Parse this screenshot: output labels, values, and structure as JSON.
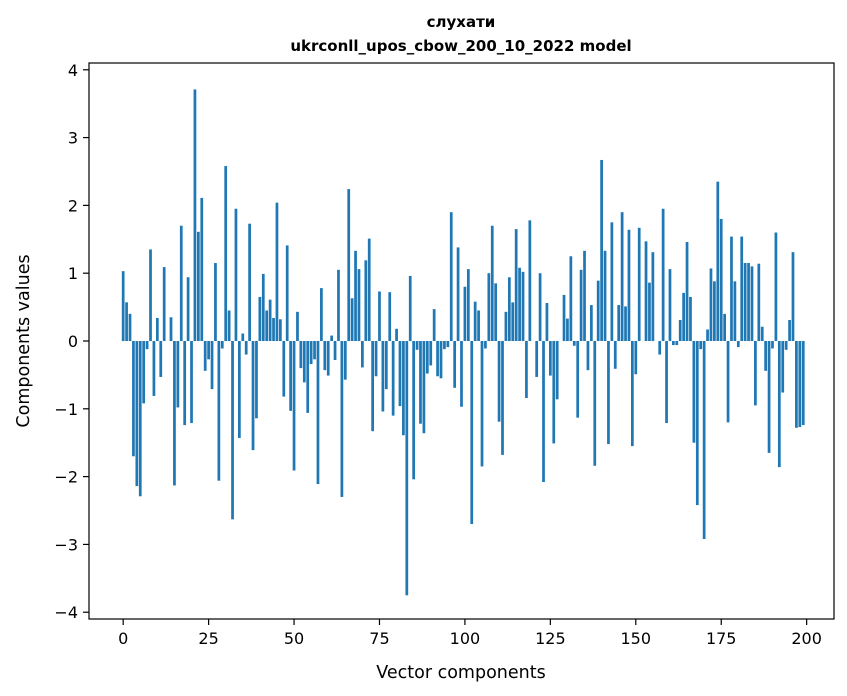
{
  "chart_data": {
    "type": "bar",
    "title_line1": "слухати",
    "title_line2": "ukrconll_upos_cbow_200_10_2022 model",
    "xlabel": "Vector components",
    "ylabel": "Components values",
    "xlim": [
      -10,
      208
    ],
    "ylim": [
      -4.1,
      4.1
    ],
    "xticks": [
      0,
      25,
      50,
      75,
      100,
      125,
      150,
      175,
      200
    ],
    "xtick_labels": [
      "0",
      "25",
      "50",
      "75",
      "100",
      "125",
      "150",
      "175",
      "200"
    ],
    "yticks": [
      -4,
      -3,
      -2,
      -1,
      0,
      1,
      2,
      3,
      4
    ],
    "ytick_labels": [
      "−4",
      "−3",
      "−2",
      "−1",
      "0",
      "1",
      "2",
      "3",
      "4"
    ],
    "bar_color": "#1f77b4",
    "values": [
      1.03,
      0.57,
      0.4,
      -1.7,
      -2.14,
      -2.29,
      -0.92,
      -0.12,
      1.35,
      -0.81,
      0.34,
      -0.53,
      1.09,
      0.0,
      0.35,
      -2.13,
      -0.98,
      1.7,
      -1.24,
      0.94,
      -1.21,
      3.71,
      1.61,
      2.11,
      -0.44,
      -0.27,
      -0.71,
      1.15,
      -2.06,
      -0.11,
      2.58,
      0.45,
      -2.63,
      1.95,
      -1.43,
      0.11,
      -0.2,
      1.73,
      -1.61,
      -1.14,
      0.65,
      0.99,
      0.45,
      0.61,
      0.34,
      2.04,
      0.32,
      -0.82,
      1.41,
      -1.03,
      -1.91,
      0.43,
      -0.4,
      -0.61,
      -1.06,
      -0.34,
      -0.27,
      -2.11,
      0.78,
      -0.43,
      -0.51,
      0.08,
      -0.28,
      1.05,
      -2.3,
      -0.57,
      2.24,
      0.63,
      1.33,
      1.06,
      -0.39,
      1.19,
      1.51,
      -1.33,
      -0.52,
      0.73,
      -1.04,
      -0.71,
      0.72,
      -1.1,
      0.18,
      -0.96,
      -1.39,
      -3.75,
      0.96,
      -2.04,
      -0.13,
      -1.22,
      -1.36,
      -0.48,
      -0.36,
      0.47,
      -0.52,
      -0.55,
      -0.12,
      -0.09,
      1.9,
      -0.69,
      1.38,
      -0.97,
      0.8,
      1.06,
      -2.7,
      0.58,
      0.45,
      -1.85,
      -0.11,
      1.0,
      1.7,
      0.85,
      -1.19,
      -1.68,
      0.43,
      0.94,
      0.57,
      1.65,
      1.08,
      1.02,
      -0.84,
      1.78,
      0.0,
      -0.53,
      1.0,
      -2.08,
      0.56,
      -0.51,
      -1.51,
      -0.86,
      0.0,
      0.68,
      0.33,
      1.25,
      -0.07,
      -1.13,
      1.05,
      1.33,
      -0.43,
      0.53,
      -1.84,
      0.89,
      2.67,
      1.33,
      -1.52,
      1.75,
      -0.41,
      0.53,
      1.9,
      0.51,
      1.64,
      -1.55,
      -0.49,
      1.67,
      0.0,
      1.47,
      0.86,
      1.31,
      0.0,
      -0.2,
      1.95,
      -1.21,
      1.06,
      -0.06,
      -0.06,
      0.31,
      0.71,
      1.46,
      0.65,
      -1.5,
      -2.42,
      -0.12,
      -2.92,
      0.17,
      1.07,
      0.88,
      2.35,
      1.8,
      0.4,
      -1.2,
      1.54,
      0.88,
      -0.09,
      1.54,
      1.15,
      1.15,
      1.1,
      -0.95,
      1.14,
      0.21,
      -0.44,
      -1.65,
      -0.11,
      1.6,
      -1.86,
      -0.76,
      -0.13,
      0.31,
      1.31,
      -1.28,
      -1.27,
      -1.24
    ],
    "values_tail_note": ""
  }
}
